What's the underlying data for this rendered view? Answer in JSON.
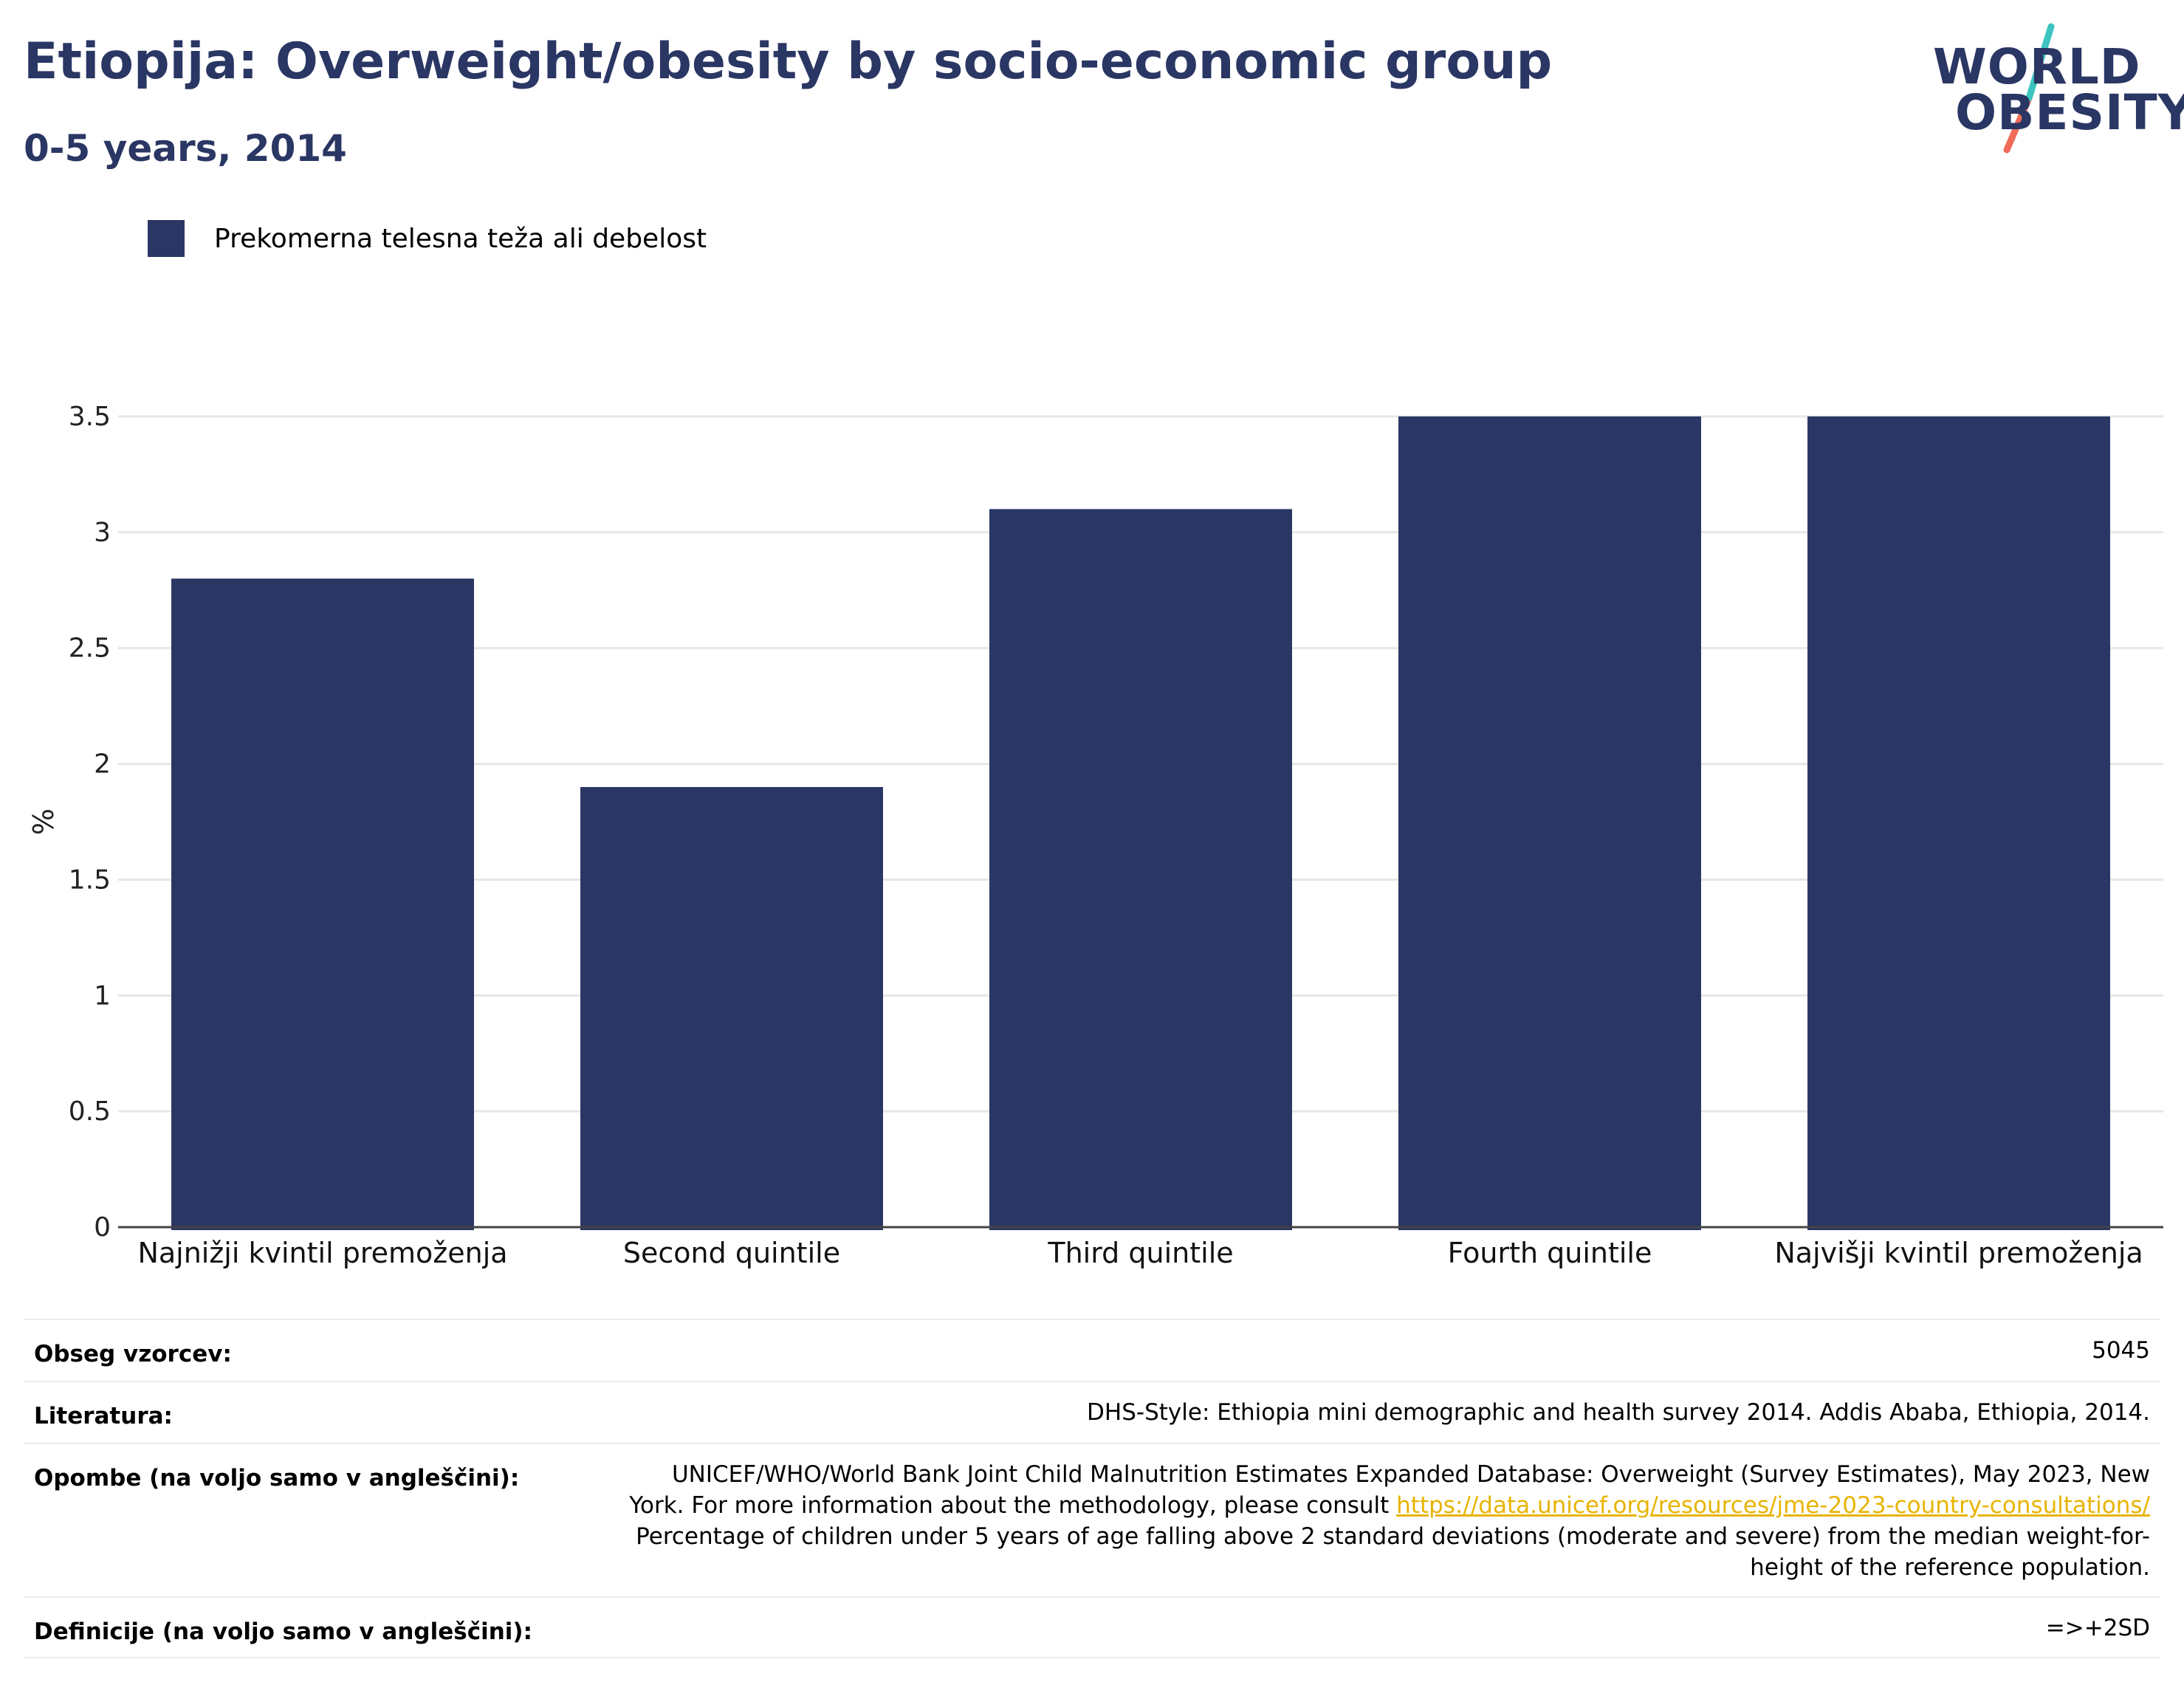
{
  "header": {
    "title": "Etiopija: Overweight/obesity by socio-economic group",
    "subtitle": "0-5 years, 2014"
  },
  "logo": {
    "line1": "WORLD",
    "line2": "OBESITY",
    "icon": "world-obesity-logo"
  },
  "colors": {
    "bar": "#2a3663",
    "title": "#2a3663",
    "link": "#e8b400",
    "logo_slash_top": "#3cc4c0",
    "logo_slash_bottom": "#f06b58"
  },
  "chart_data": {
    "type": "bar",
    "categories": [
      "Najnižji kvintil premoženja",
      "Second quintile",
      "Third quintile",
      "Fourth quintile",
      "Najvišji kvintil premoženja"
    ],
    "series": [
      {
        "name": "Prekomerna telesna teža ali debelost",
        "values": [
          2.8,
          1.9,
          3.1,
          3.5,
          3.5
        ]
      }
    ],
    "ylabel": "%",
    "xlabel": "",
    "ylim": [
      0,
      3.5
    ],
    "yticks": [
      "0",
      "0.5",
      "1",
      "1.5",
      "2",
      "2.5",
      "3",
      "3.5"
    ],
    "grid": true,
    "legend": "top-left"
  },
  "info_table": {
    "sample_label": "Obseg vzorcev:",
    "sample_value": "5045",
    "source_label": "Literatura:",
    "source_value": "DHS-Style: Ethiopia mini demographic and health survey 2014. Addis Ababa, Ethiopia, 2014.",
    "notes_label": "Opombe (na voljo samo v angleščini):",
    "notes_line1": "UNICEF/WHO/World Bank Joint Child Malnutrition Estimates Expanded Database: Overweight (Survey Estimates), May 2023, New",
    "notes_line2_prefix": "York. For more information about the methodology, please consult ",
    "notes_link": "https://data.unicef.org/resources/jme-2023-country-consultations/",
    "notes_line3": "Percentage of children under 5 years of age falling above 2 standard deviations (moderate and severe) from the median weight-for-",
    "notes_line4": "height of the reference population.",
    "definition_label": "Definicije (na voljo samo v angleščini):",
    "definition_value": "=>+2SD"
  }
}
